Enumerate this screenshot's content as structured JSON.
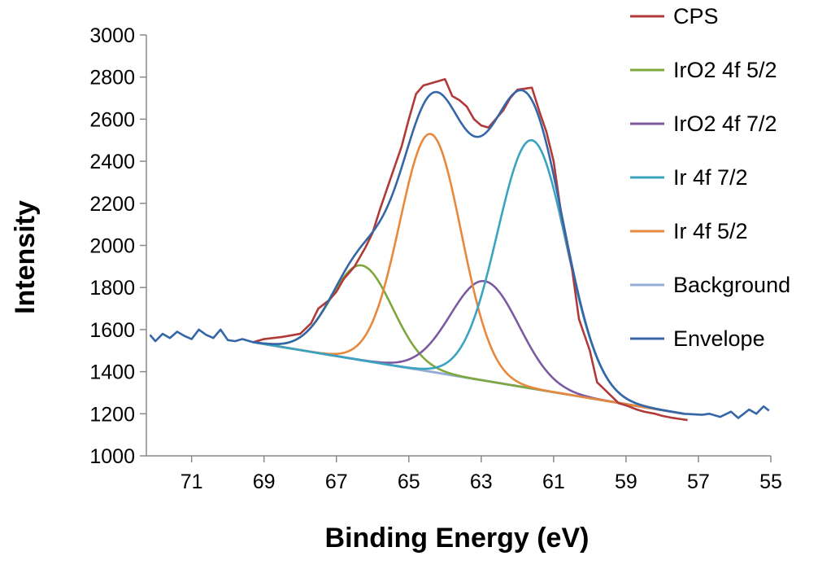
{
  "chart_data": {
    "type": "line",
    "xlabel": "Binding Energy (eV)",
    "ylabel": "Intensity",
    "xlim": [
      72.25,
      55
    ],
    "ylim": [
      1000,
      3000
    ],
    "x_reversed": true,
    "x_ticks": [
      71,
      69,
      67,
      65,
      63,
      61,
      59,
      57,
      55
    ],
    "x_tick_labels": [
      "71",
      "69",
      "67",
      "65",
      "63",
      "61",
      "59",
      "57",
      "55"
    ],
    "y_ticks": [
      1000,
      1200,
      1400,
      1600,
      1800,
      2000,
      2200,
      2400,
      2600,
      2800,
      3000
    ],
    "y_tick_labels": [
      "1000",
      "1200",
      "1400",
      "1600",
      "1800",
      "2000",
      "2200",
      "2400",
      "2600",
      "2800",
      "3000"
    ],
    "grid": false,
    "legend_position": "right",
    "series": [
      {
        "name": "CPS",
        "color": "#b03a38",
        "x": [
          69.3,
          69.0,
          68.5,
          68.0,
          67.7,
          67.5,
          67.2,
          67.0,
          66.8,
          66.5,
          66.2,
          66.0,
          65.8,
          65.6,
          65.4,
          65.2,
          65.0,
          64.8,
          64.6,
          64.4,
          64.2,
          64.0,
          63.8,
          63.6,
          63.4,
          63.2,
          63.0,
          62.8,
          62.6,
          62.4,
          62.2,
          62.0,
          61.8,
          61.6,
          61.4,
          61.2,
          61.0,
          60.8,
          60.5,
          60.3,
          60.0,
          59.8,
          59.5,
          59.2,
          59.0,
          58.7,
          58.5,
          58.2,
          58.0,
          57.7,
          57.5,
          57.3
        ],
        "values": [
          1540,
          1555,
          1565,
          1580,
          1630,
          1700,
          1740,
          1780,
          1840,
          1900,
          1990,
          2060,
          2170,
          2270,
          2370,
          2470,
          2600,
          2720,
          2760,
          2770,
          2780,
          2790,
          2710,
          2690,
          2660,
          2600,
          2570,
          2560,
          2600,
          2640,
          2700,
          2740,
          2745,
          2750,
          2640,
          2540,
          2400,
          2160,
          1900,
          1650,
          1500,
          1350,
          1300,
          1250,
          1240,
          1220,
          1210,
          1200,
          1190,
          1180,
          1175,
          1170
        ]
      },
      {
        "name": "IrO2 4f 5/2",
        "color": "#7ea83e",
        "peak": {
          "center": 66.3,
          "height": 1905,
          "sigma": 0.85
        },
        "x_range": [
          69.3,
          57.4
        ]
      },
      {
        "name": "IrO2 4f 7/2",
        "color": "#7c59a1",
        "peak": {
          "center": 62.9,
          "height": 1830,
          "sigma": 0.95
        },
        "x_range": [
          69.3,
          57.4
        ]
      },
      {
        "name": "Ir 4f 7/2",
        "color": "#3aa4c0",
        "peak": {
          "center": 61.6,
          "height": 2500,
          "sigma": 0.95
        },
        "x_range": [
          69.3,
          57.4
        ]
      },
      {
        "name": "Ir 4f 5/2",
        "color": "#e8883c",
        "peak": {
          "center": 64.4,
          "height": 2530,
          "sigma": 0.85
        },
        "x_range": [
          69.3,
          57.4
        ]
      },
      {
        "name": "Background",
        "color": "#95acd6",
        "x": [
          69.3,
          57.4
        ],
        "values": [
          1540,
          1200
        ]
      },
      {
        "name": "Envelope",
        "color": "#3566a8",
        "x": [
          72.15,
          72.0,
          71.8,
          71.6,
          71.4,
          71.2,
          71.0,
          70.8,
          70.6,
          70.4,
          70.2,
          70.0,
          69.8,
          69.6,
          69.3,
          56.9,
          56.7,
          56.4,
          56.1,
          55.9,
          55.6,
          55.4,
          55.2,
          55.05
        ],
        "values": [
          1575,
          1545,
          1580,
          1560,
          1590,
          1570,
          1555,
          1600,
          1575,
          1560,
          1600,
          1550,
          1545,
          1555,
          1540,
          1195,
          1200,
          1185,
          1210,
          1180,
          1220,
          1200,
          1235,
          1215
        ]
      }
    ]
  }
}
